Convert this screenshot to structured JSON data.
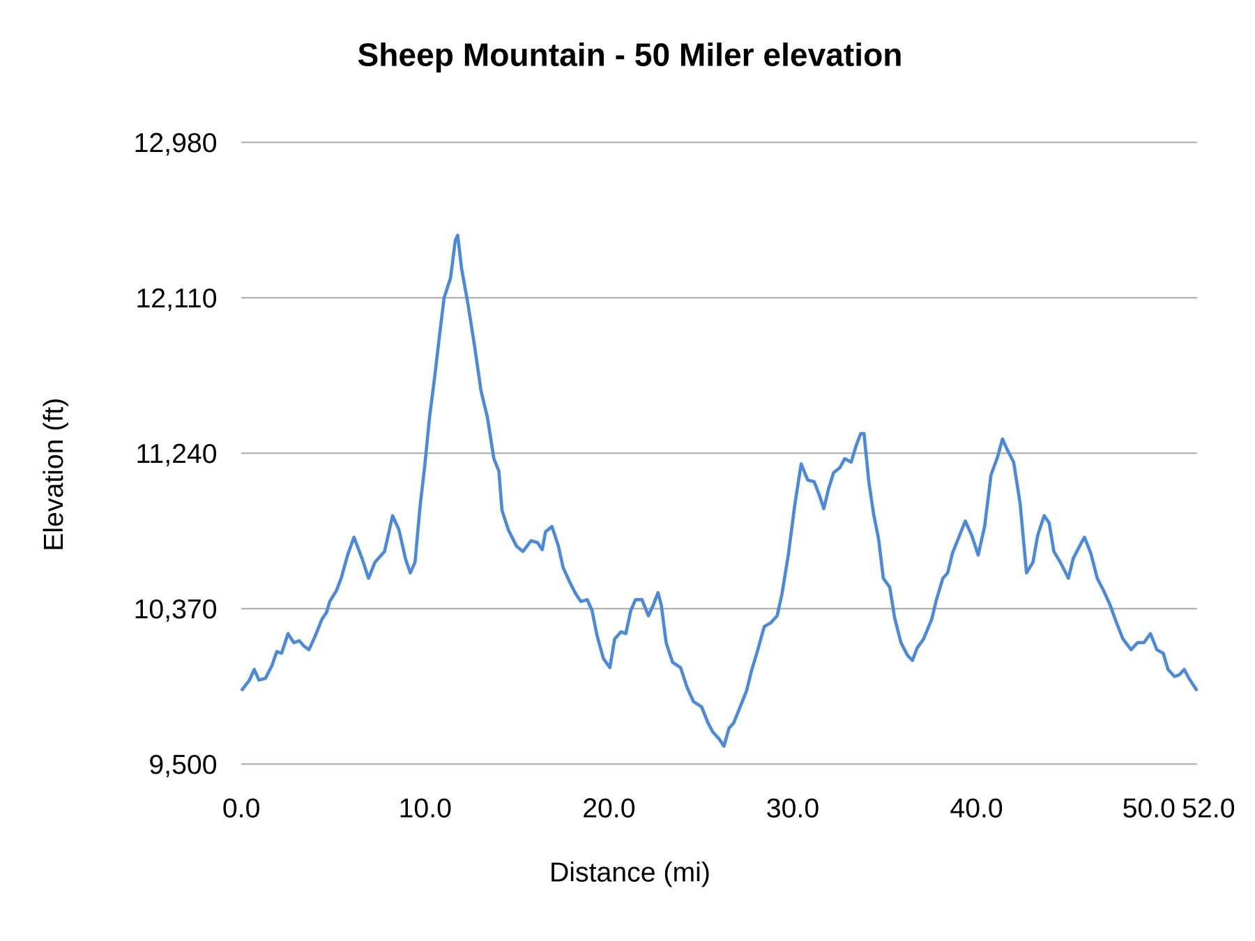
{
  "chart_data": {
    "type": "line",
    "title": "Sheep Mountain - 50 Miler elevation",
    "xlabel": "Distance (mi)",
    "ylabel": "Elevation (ft)",
    "xlim": [
      0,
      52
    ],
    "ylim": [
      9500,
      12980
    ],
    "x_ticks": [
      0,
      10,
      20,
      30,
      40,
      50,
      52
    ],
    "x_tick_labels": [
      "0.0",
      "10.0",
      "20.0",
      "30.0",
      "40.0",
      "50.0",
      "52.0"
    ],
    "y_ticks": [
      9500,
      10370,
      11240,
      12110,
      12980
    ],
    "y_tick_labels": [
      "9,500",
      "10,370",
      "11,240",
      "12,110",
      "12,980"
    ],
    "grid": "horizontal",
    "legend": "none",
    "line_color": "#4a89dc",
    "x": [
      0.0,
      0.44,
      0.7,
      0.96,
      1.31,
      1.66,
      1.93,
      2.19,
      2.54,
      2.85,
      3.15,
      3.41,
      3.68,
      4.03,
      4.38,
      4.64,
      4.81,
      5.17,
      5.43,
      5.78,
      6.13,
      6.57,
      6.92,
      7.27,
      7.79,
      8.23,
      8.58,
      8.93,
      9.19,
      9.45,
      9.72,
      9.98,
      10.24,
      10.51,
      10.77,
      11.03,
      11.38,
      11.64,
      11.77,
      11.99,
      12.34,
      12.69,
      13.04,
      13.39,
      13.74,
      14.01,
      14.18,
      14.53,
      14.97,
      15.32,
      15.76,
      16.11,
      16.37,
      16.55,
      16.9,
      17.25,
      17.51,
      17.86,
      18.21,
      18.47,
      18.82,
      19.08,
      19.35,
      19.7,
      20.05,
      20.31,
      20.66,
      20.92,
      21.19,
      21.45,
      21.8,
      22.15,
      22.41,
      22.67,
      22.85,
      23.11,
      23.46,
      23.9,
      24.25,
      24.6,
      25.04,
      25.39,
      25.65,
      26.0,
      26.26,
      26.53,
      26.79,
      27.14,
      27.49,
      27.75,
      28.1,
      28.45,
      28.8,
      29.15,
      29.41,
      29.76,
      30.11,
      30.46,
      30.81,
      31.17,
      31.43,
      31.69,
      31.95,
      32.22,
      32.57,
      32.83,
      33.18,
      33.44,
      33.7,
      33.88,
      34.14,
      34.4,
      34.67,
      34.93,
      35.28,
      35.54,
      35.89,
      36.24,
      36.51,
      36.77,
      37.12,
      37.56,
      37.82,
      38.17,
      38.43,
      38.69,
      39.04,
      39.39,
      39.74,
      40.09,
      40.44,
      40.79,
      41.15,
      41.41,
      41.67,
      42.02,
      42.37,
      42.72,
      43.07,
      43.33,
      43.68,
      43.95,
      44.21,
      44.56,
      45.0,
      45.26,
      45.61,
      45.87,
      46.22,
      46.57,
      46.92,
      47.27,
      47.62,
      47.97,
      48.41,
      48.76,
      49.11,
      49.46,
      49.81,
      50.16,
      50.42,
      50.77,
      51.04,
      51.3,
      51.56,
      52.0
    ],
    "y": [
      9910,
      9970,
      10030,
      9970,
      9980,
      10050,
      10130,
      10120,
      10230,
      10180,
      10190,
      10160,
      10140,
      10220,
      10310,
      10350,
      10410,
      10470,
      10540,
      10670,
      10770,
      10650,
      10540,
      10630,
      10690,
      10890,
      10810,
      10650,
      10570,
      10630,
      10940,
      11170,
      11440,
      11660,
      11890,
      12110,
      12220,
      12430,
      12460,
      12270,
      12070,
      11840,
      11590,
      11440,
      11210,
      11140,
      10920,
      10810,
      10720,
      10690,
      10750,
      10740,
      10700,
      10800,
      10830,
      10720,
      10600,
      10520,
      10450,
      10410,
      10420,
      10360,
      10220,
      10090,
      10040,
      10200,
      10240,
      10230,
      10360,
      10420,
      10420,
      10330,
      10390,
      10460,
      10390,
      10180,
      10070,
      10040,
      9930,
      9850,
      9820,
      9730,
      9680,
      9640,
      9600,
      9700,
      9730,
      9820,
      9910,
      10020,
      10140,
      10270,
      10290,
      10330,
      10450,
      10670,
      10950,
      11180,
      11090,
      11080,
      11010,
      10930,
      11040,
      11130,
      11160,
      11210,
      11190,
      11280,
      11350,
      11350,
      11080,
      10900,
      10760,
      10540,
      10490,
      10320,
      10180,
      10110,
      10080,
      10150,
      10200,
      10310,
      10420,
      10540,
      10570,
      10680,
      10770,
      10860,
      10780,
      10670,
      10830,
      11120,
      11220,
      11320,
      11260,
      11190,
      10960,
      10570,
      10630,
      10780,
      10890,
      10850,
      10690,
      10630,
      10540,
      10650,
      10720,
      10770,
      10680,
      10540,
      10470,
      10390,
      10290,
      10200,
      10140,
      10180,
      10180,
      10230,
      10140,
      10120,
      10030,
      9990,
      10000,
      10030,
      9980,
      9910
    ]
  }
}
